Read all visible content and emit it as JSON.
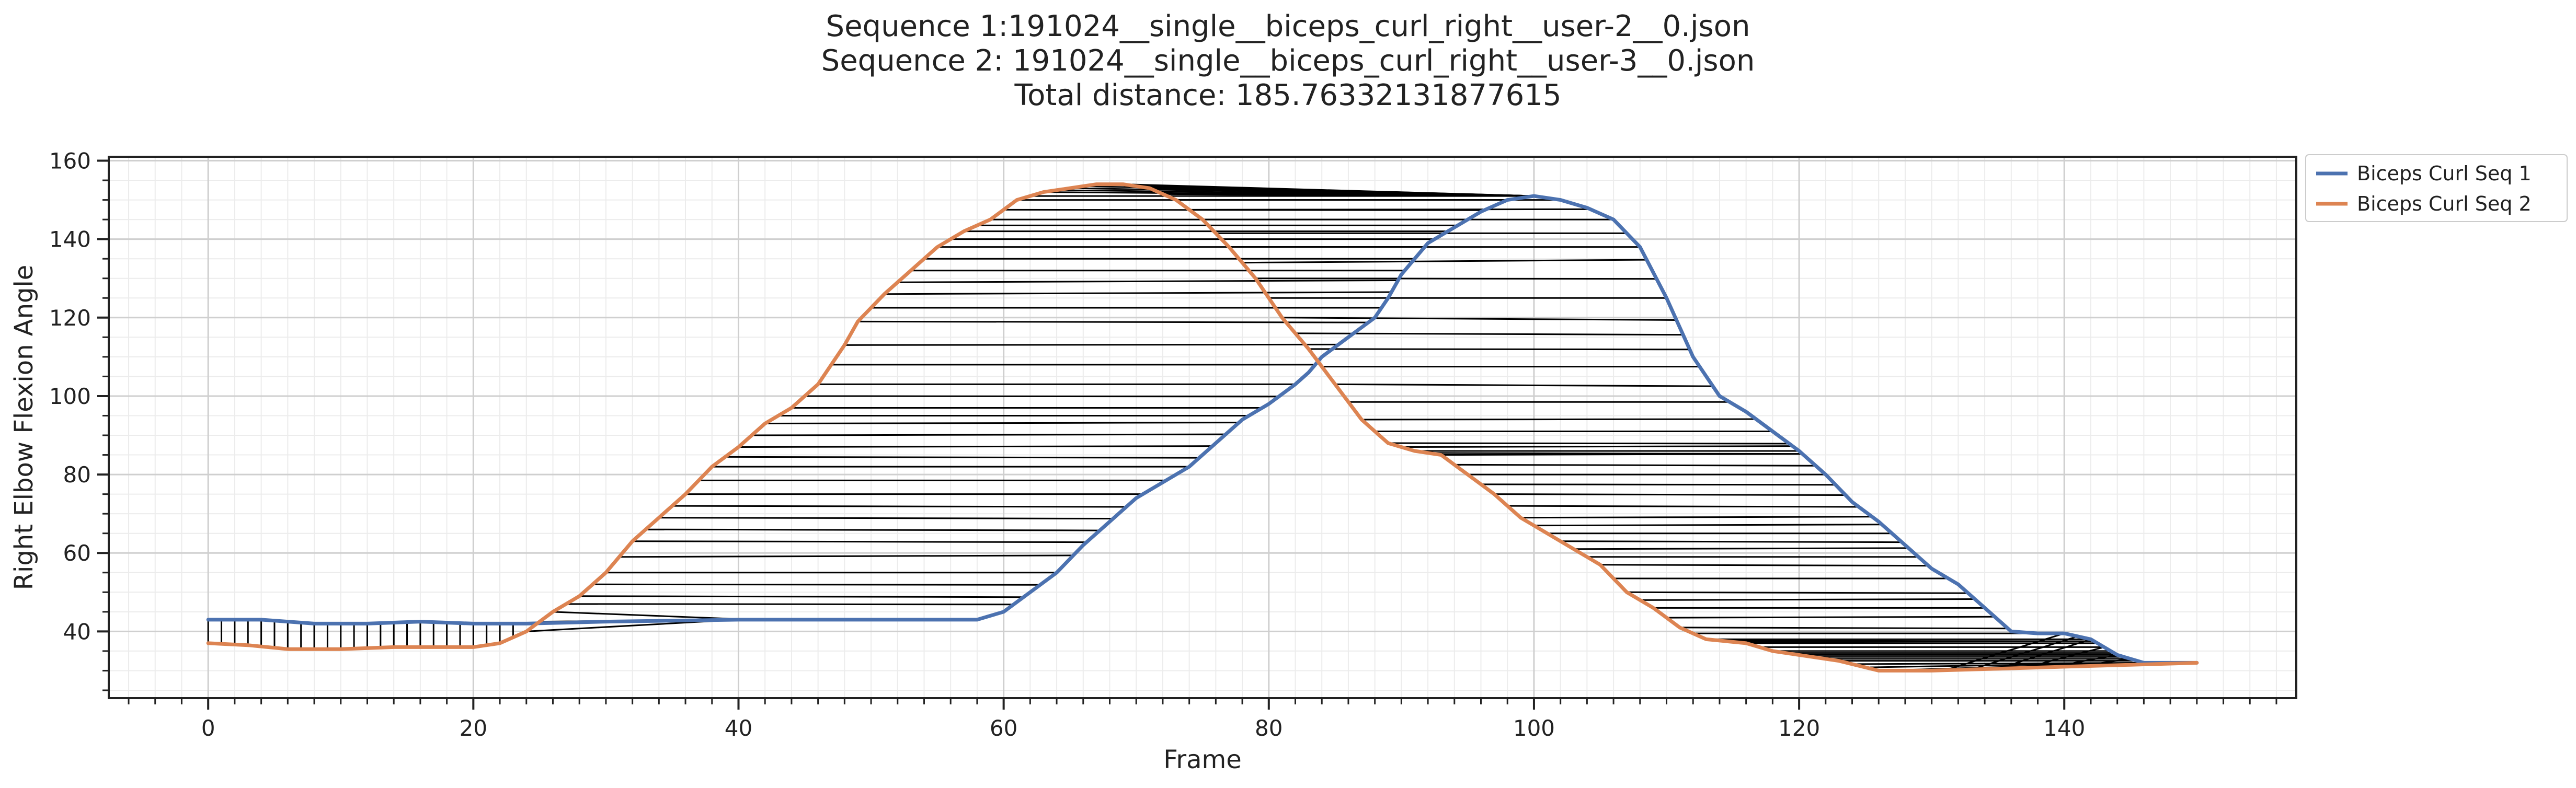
{
  "chart_data": {
    "type": "line",
    "title_lines": [
      "Sequence 1:191024__single__biceps_curl_right__user-2__0.json",
      "Sequence 2: 191024__single__biceps_curl_right__user-3__0.json",
      "Total distance: 185.76332131877615"
    ],
    "xlabel": "Frame",
    "ylabel": "Right Elbow Flexion Angle",
    "xlim": [
      -7.5,
      157.5
    ],
    "ylim": [
      23,
      161
    ],
    "xticks": [
      0,
      20,
      40,
      60,
      80,
      100,
      120,
      140
    ],
    "yticks": [
      40,
      60,
      80,
      100,
      120,
      140,
      160
    ],
    "grid": true,
    "legend_position": "outside-top-right",
    "series": [
      {
        "name": "Biceps Curl Seq 1",
        "color": "#4c72b0",
        "points": [
          [
            0,
            43
          ],
          [
            4,
            43
          ],
          [
            8,
            42
          ],
          [
            12,
            42
          ],
          [
            16,
            42.5
          ],
          [
            20,
            42
          ],
          [
            24,
            42
          ],
          [
            30,
            42.5
          ],
          [
            40,
            43
          ],
          [
            50,
            43
          ],
          [
            55,
            43
          ],
          [
            58,
            43
          ],
          [
            60,
            45
          ],
          [
            62,
            50
          ],
          [
            64,
            55
          ],
          [
            66,
            62
          ],
          [
            68,
            68
          ],
          [
            70,
            74
          ],
          [
            72,
            78
          ],
          [
            74,
            82
          ],
          [
            76,
            88
          ],
          [
            78,
            94
          ],
          [
            80,
            98
          ],
          [
            82,
            103
          ],
          [
            83,
            106
          ],
          [
            84,
            110
          ],
          [
            86,
            115
          ],
          [
            88,
            120
          ],
          [
            89,
            125
          ],
          [
            90,
            131
          ],
          [
            92,
            139
          ],
          [
            94,
            143
          ],
          [
            96,
            147
          ],
          [
            98,
            150
          ],
          [
            100,
            151
          ],
          [
            102,
            150
          ],
          [
            104,
            148
          ],
          [
            106,
            145
          ],
          [
            108,
            138
          ],
          [
            110,
            125
          ],
          [
            112,
            110
          ],
          [
            114,
            100
          ],
          [
            116,
            96
          ],
          [
            118,
            91
          ],
          [
            120,
            86
          ],
          [
            122,
            80
          ],
          [
            124,
            73
          ],
          [
            126,
            68
          ],
          [
            128,
            62
          ],
          [
            130,
            56
          ],
          [
            132,
            52
          ],
          [
            134,
            46
          ],
          [
            136,
            40
          ],
          [
            138,
            39.5
          ],
          [
            140,
            39.5
          ],
          [
            142,
            38
          ],
          [
            144,
            34
          ],
          [
            146,
            32
          ],
          [
            150,
            32
          ]
        ]
      },
      {
        "name": "Biceps Curl Seq 2",
        "color": "#dd8452",
        "points": [
          [
            0,
            37
          ],
          [
            3,
            36.5
          ],
          [
            6,
            35.5
          ],
          [
            10,
            35.5
          ],
          [
            14,
            36
          ],
          [
            18,
            36
          ],
          [
            20,
            36
          ],
          [
            22,
            37
          ],
          [
            24,
            40
          ],
          [
            26,
            45
          ],
          [
            28,
            49
          ],
          [
            30,
            55
          ],
          [
            32,
            63
          ],
          [
            34,
            69
          ],
          [
            36,
            75
          ],
          [
            38,
            82
          ],
          [
            40,
            87
          ],
          [
            42,
            93
          ],
          [
            44,
            97
          ],
          [
            46,
            103
          ],
          [
            48,
            113
          ],
          [
            49,
            119
          ],
          [
            51,
            126
          ],
          [
            53,
            132
          ],
          [
            55,
            138
          ],
          [
            57,
            142
          ],
          [
            59,
            145
          ],
          [
            61,
            150
          ],
          [
            63,
            152
          ],
          [
            65,
            153
          ],
          [
            67,
            154
          ],
          [
            69,
            154
          ],
          [
            71,
            153
          ],
          [
            73,
            150
          ],
          [
            75,
            145
          ],
          [
            77,
            138
          ],
          [
            79,
            130
          ],
          [
            81,
            120
          ],
          [
            83,
            112
          ],
          [
            85,
            103
          ],
          [
            87,
            94
          ],
          [
            89,
            88
          ],
          [
            91,
            86
          ],
          [
            93,
            85
          ],
          [
            95,
            80
          ],
          [
            97,
            75
          ],
          [
            99,
            69
          ],
          [
            101,
            65
          ],
          [
            103,
            61
          ],
          [
            105,
            57
          ],
          [
            107,
            50
          ],
          [
            109,
            46
          ],
          [
            111,
            41
          ],
          [
            113,
            38
          ],
          [
            116,
            37
          ],
          [
            118,
            35
          ],
          [
            120,
            34
          ],
          [
            123,
            32.5
          ],
          [
            126,
            30
          ],
          [
            130,
            30
          ],
          [
            135,
            30.5
          ],
          [
            140,
            31
          ],
          [
            145,
            31.5
          ],
          [
            150,
            32
          ]
        ]
      }
    ]
  }
}
